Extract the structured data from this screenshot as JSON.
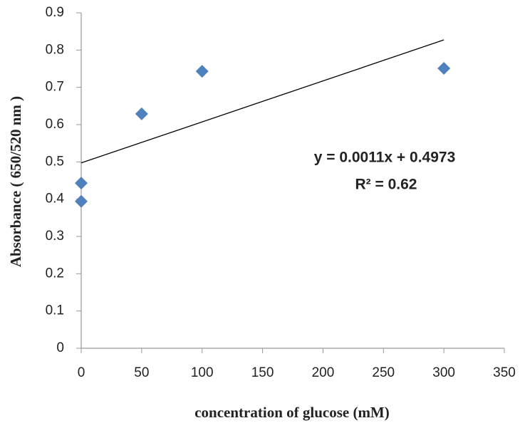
{
  "chart_data": {
    "type": "scatter",
    "x_label": "concentration of glucose (mM)",
    "y_label": "Absorbance ( 650/520 nm )",
    "series": [
      {
        "color": "#4f81bd",
        "x": [
          0,
          0,
          50,
          100,
          300
        ],
        "values": [
          0.394,
          0.443,
          0.629,
          0.743,
          0.751
        ]
      }
    ],
    "xlim": [
      0,
      350
    ],
    "xticks": [
      0,
      50,
      100,
      150,
      200,
      250,
      300,
      350
    ],
    "ylim": [
      0,
      0.9
    ],
    "yticks": [
      0,
      0.1,
      0.2,
      0.3,
      0.4,
      0.5,
      0.6,
      0.7,
      0.8,
      0.9
    ],
    "grid": false,
    "trendline": {
      "slope": 0.0011,
      "intercept": 0.4973,
      "equation": "y = 0.0011x + 0.4973",
      "r_squared_label": "R² = 0.62"
    }
  }
}
